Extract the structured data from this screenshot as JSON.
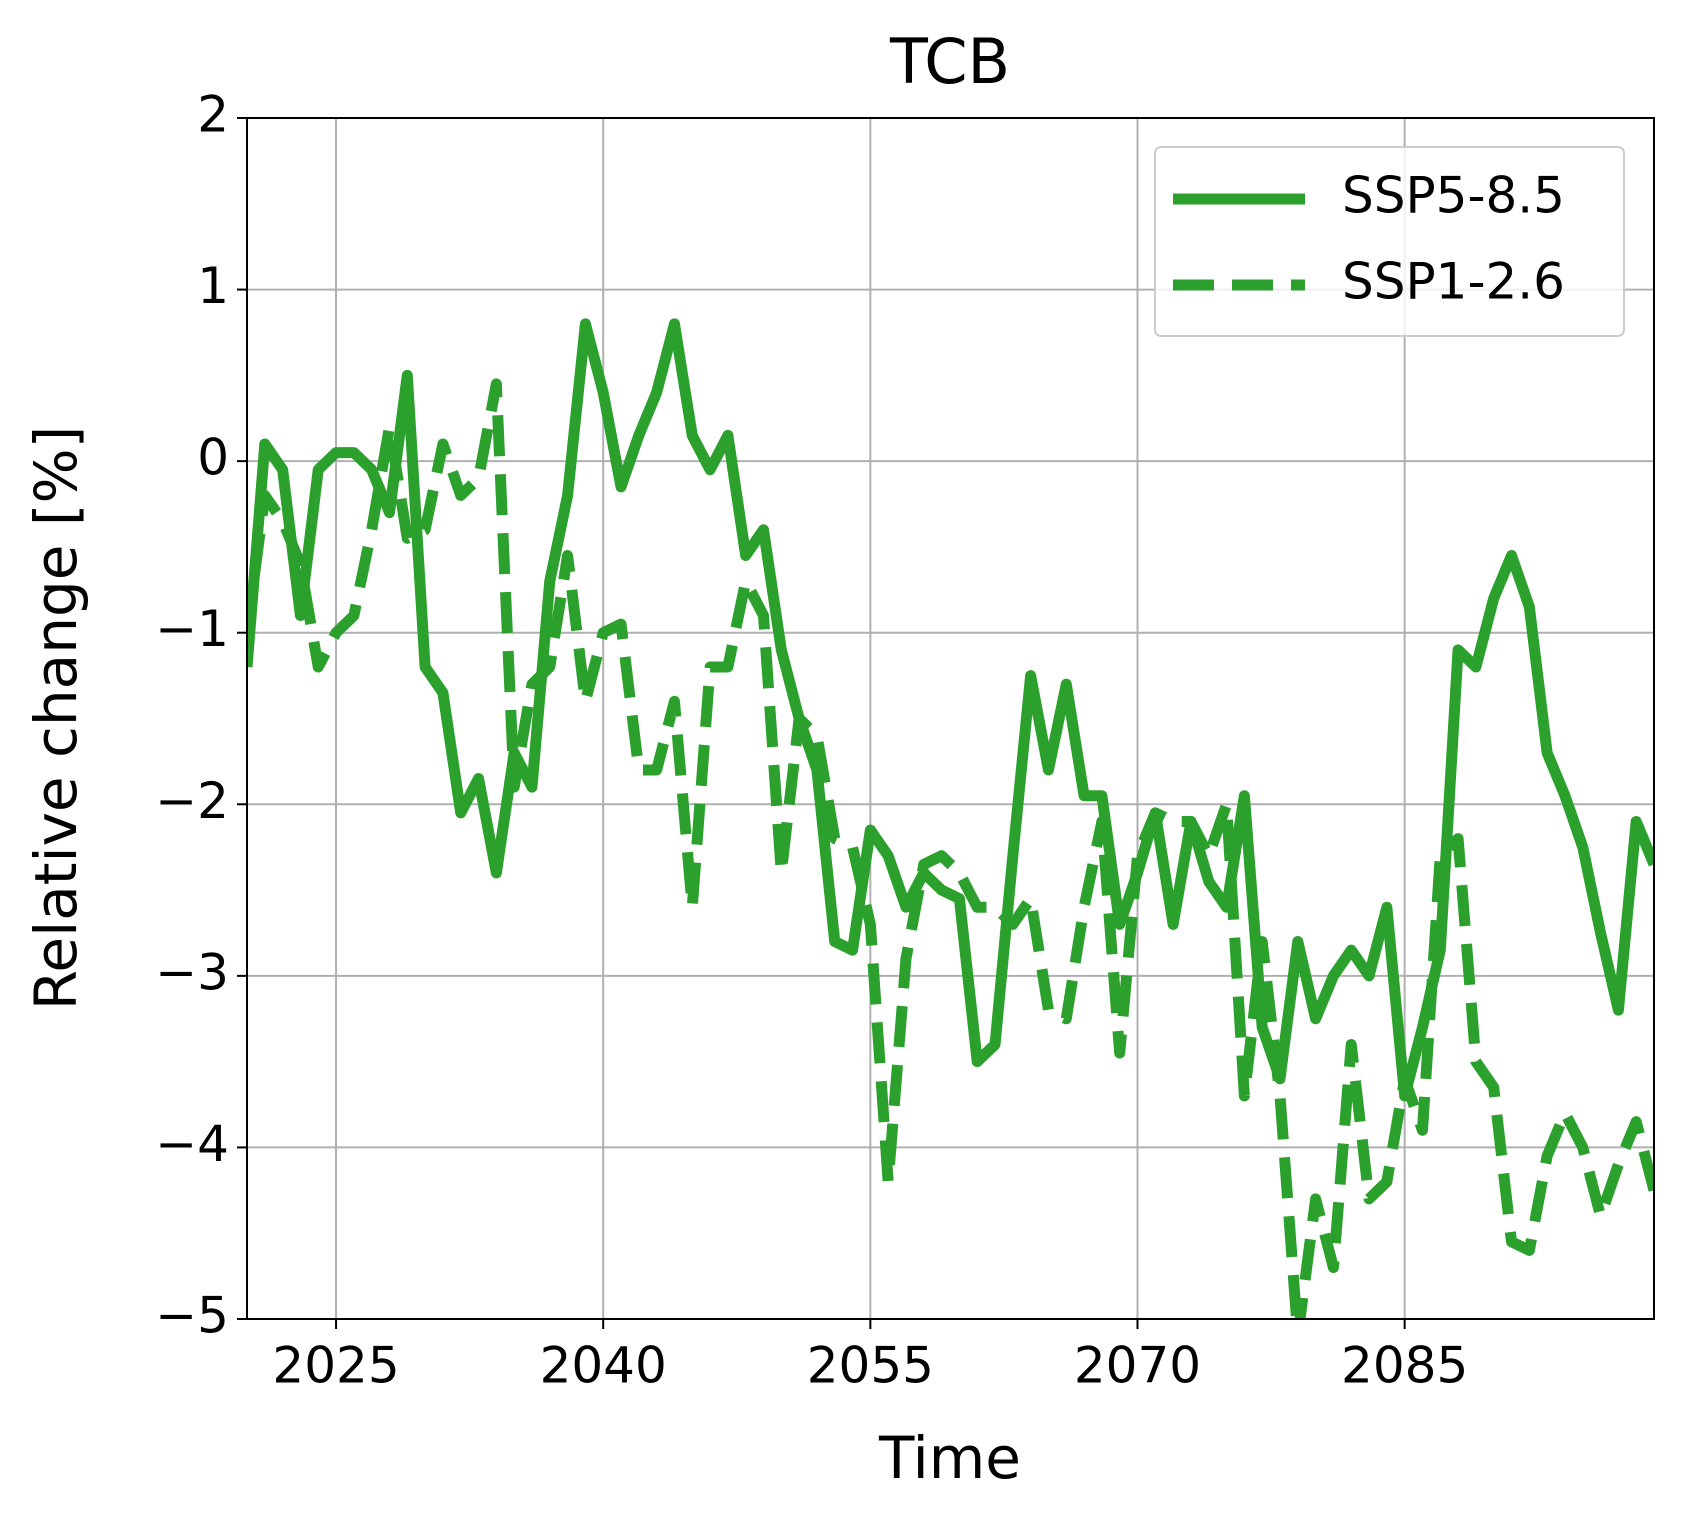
{
  "chart_data": {
    "type": "line",
    "title": "TCB",
    "x_label": "Time",
    "y_label": "Relative change [%]",
    "x": [
      2020,
      2021,
      2022,
      2023,
      2024,
      2025,
      2026,
      2027,
      2028,
      2029,
      2030,
      2031,
      2032,
      2033,
      2034,
      2035,
      2036,
      2037,
      2038,
      2039,
      2040,
      2041,
      2042,
      2043,
      2044,
      2045,
      2046,
      2047,
      2048,
      2049,
      2050,
      2051,
      2052,
      2053,
      2054,
      2055,
      2056,
      2057,
      2058,
      2059,
      2060,
      2061,
      2062,
      2063,
      2064,
      2065,
      2066,
      2067,
      2068,
      2069,
      2070,
      2071,
      2072,
      2073,
      2074,
      2075,
      2076,
      2077,
      2078,
      2079,
      2080,
      2081,
      2082,
      2083,
      2084,
      2085,
      2086,
      2087,
      2088,
      2089,
      2090,
      2091,
      2092,
      2093,
      2094,
      2095,
      2096,
      2097,
      2098,
      2099
    ],
    "series": [
      {
        "name": "SSP5-8.5",
        "color": "#2ca02c",
        "dash": "solid",
        "values": [
          -1.2,
          0.1,
          -0.05,
          -0.9,
          -0.05,
          0.05,
          0.05,
          -0.05,
          -0.3,
          0.5,
          -1.2,
          -1.35,
          -2.05,
          -1.85,
          -2.4,
          -1.7,
          -1.9,
          -0.7,
          -0.2,
          0.8,
          0.4,
          -0.15,
          0.15,
          0.4,
          0.8,
          0.15,
          -0.05,
          0.15,
          -0.55,
          -0.4,
          -1.1,
          -1.5,
          -1.8,
          -2.8,
          -2.85,
          -2.15,
          -2.3,
          -2.6,
          -2.4,
          -2.5,
          -2.55,
          -3.5,
          -3.4,
          -2.3,
          -1.25,
          -1.8,
          -1.3,
          -1.95,
          -1.95,
          -2.7,
          -2.4,
          -2.05,
          -2.7,
          -2.1,
          -2.45,
          -2.6,
          -1.95,
          -3.3,
          -3.6,
          -2.8,
          -3.25,
          -3.0,
          -2.85,
          -3.0,
          -2.6,
          -3.7,
          -3.3,
          -2.85,
          -1.1,
          -1.2,
          -0.8,
          -0.55,
          -0.85,
          -1.7,
          -1.95,
          -2.25,
          -2.75,
          -3.2,
          -2.1,
          -2.35
        ]
      },
      {
        "name": "SSP1-2.6",
        "color": "#2ca02c",
        "dash": "dashed",
        "values": [
          -1.0,
          -0.2,
          -0.35,
          -0.6,
          -1.2,
          -1.0,
          -0.9,
          -0.4,
          0.2,
          -0.45,
          -0.4,
          0.1,
          -0.2,
          -0.1,
          0.45,
          -1.9,
          -1.3,
          -1.2,
          -0.55,
          -1.4,
          -1.0,
          -0.95,
          -1.8,
          -1.8,
          -1.4,
          -2.6,
          -1.2,
          -1.2,
          -0.7,
          -0.9,
          -2.4,
          -1.5,
          -1.6,
          -2.2,
          -2.25,
          -2.7,
          -4.2,
          -2.9,
          -2.35,
          -2.3,
          -2.4,
          -2.6,
          -2.6,
          -2.7,
          -2.55,
          -3.2,
          -3.25,
          -2.6,
          -2.1,
          -3.45,
          -2.3,
          -2.05,
          -2.1,
          -2.1,
          -2.3,
          -2.0,
          -3.7,
          -2.8,
          -3.7,
          -5.1,
          -4.3,
          -4.7,
          -3.4,
          -4.3,
          -4.2,
          -3.6,
          -3.9,
          -2.3,
          -2.2,
          -3.5,
          -3.65,
          -4.55,
          -4.6,
          -4.05,
          -3.8,
          -4.0,
          -4.4,
          -4.1,
          -3.85,
          -4.25
        ]
      }
    ],
    "xlim": [
      2020,
      2099
    ],
    "xticks": [
      2025,
      2040,
      2055,
      2070,
      2085
    ],
    "ylim": [
      -5,
      2
    ],
    "yticks": [
      {
        "value": -5,
        "label": "−5"
      },
      {
        "value": -4,
        "label": "−4"
      },
      {
        "value": -3,
        "label": "−3"
      },
      {
        "value": -2,
        "label": "−2"
      },
      {
        "value": -1,
        "label": "−1"
      },
      0,
      1,
      2
    ],
    "grid": true,
    "legend": "upper right"
  }
}
